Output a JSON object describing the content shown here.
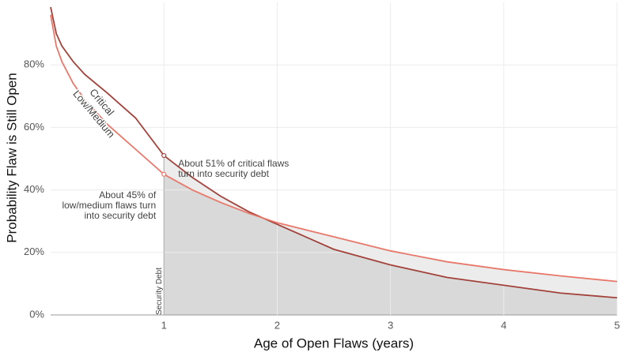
{
  "chart_data": {
    "type": "line",
    "x_label": "Age of Open Flaws (years)",
    "y_label": "Probability Flaw is Still Open",
    "x": [
      0,
      0.05,
      0.1,
      0.2,
      0.3,
      0.5,
      0.75,
      1,
      1.25,
      1.5,
      1.75,
      2,
      2.5,
      3,
      3.5,
      4,
      4.5,
      5
    ],
    "series": [
      {
        "name": "Critical",
        "color": "#a2423b",
        "values": [
          98.5,
          90,
          86,
          81,
          77,
          71,
          63,
          51,
          44,
          38,
          33,
          29,
          21,
          16,
          12,
          9.5,
          7,
          5.5
        ]
      },
      {
        "name": "Low/Medium",
        "color": "#e8786a",
        "values": [
          96,
          86,
          81,
          74,
          69,
          61,
          53,
          45,
          40,
          36,
          32.5,
          29.5,
          25,
          20.5,
          17,
          14.5,
          12.5,
          10.7
        ]
      }
    ],
    "xlim": [
      0,
      5
    ],
    "ylim": [
      0,
      100
    ],
    "xticks": [
      1,
      2,
      3,
      4,
      5
    ],
    "yticks": [
      {
        "value": 0,
        "label": "0%"
      },
      {
        "value": 20,
        "label": "20%"
      },
      {
        "value": 40,
        "label": "40%"
      },
      {
        "value": 60,
        "label": "60%"
      },
      {
        "value": 80,
        "label": "80%"
      }
    ],
    "grid": true,
    "shade_from": 1,
    "shade_label": "Security Debt",
    "annotations": [
      {
        "lines": [
          "About 51% of critical flaws",
          "turn into security debt"
        ],
        "series": 0
      },
      {
        "lines": [
          "About 45% of",
          "low/medium flaws turn",
          "into security debt"
        ],
        "series": 1
      }
    ]
  }
}
